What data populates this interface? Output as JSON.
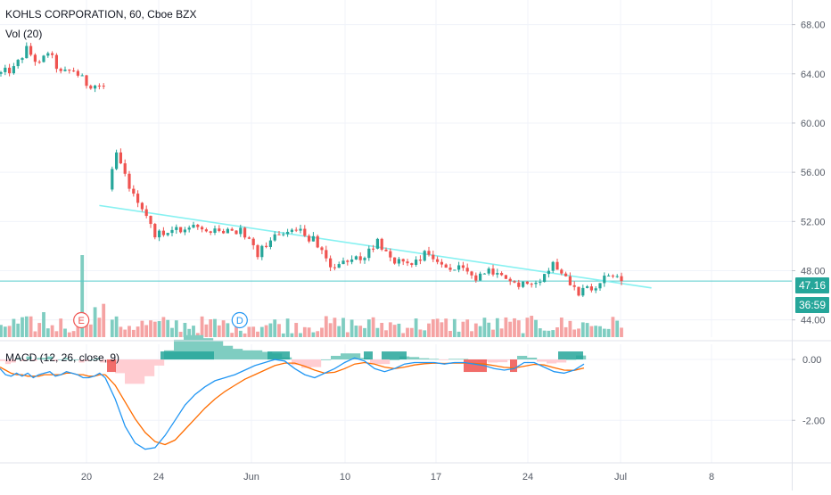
{
  "header": {
    "title": "KOHLS CORPORATION, 60, Cboe BZX",
    "volume_label": "Vol (20)",
    "macd_label": "MACD (12, 26, close, 9)"
  },
  "price_tag": {
    "value": "47.16",
    "countdown": "36:59",
    "color": "#26a69a"
  },
  "colors": {
    "up": "#26a69a",
    "down": "#ef5350",
    "vol_up": "#7fcdc1",
    "vol_down": "#f5a3a3",
    "macd_line": "#2196f3",
    "signal_line": "#ff6d00",
    "trendline": "#87f1f1",
    "level_line": "#56cccc"
  },
  "chart_data": [
    {
      "type": "candlestick",
      "title": "KOHLS CORPORATION, 60, Cboe BZX",
      "x_ticks": [
        "20",
        "24",
        "Jun",
        "10",
        "17",
        "24",
        "Jul",
        "8"
      ],
      "y_ticks": [
        "44.00",
        "48.00",
        "52.00",
        "56.00",
        "60.00",
        "64.00",
        "68.00"
      ],
      "ylim": [
        42.6,
        70
      ],
      "grid": true,
      "segments": [
        {
          "bars": 19,
          "start": 64.0,
          "path": [
            [
              0,
              63.9
            ],
            [
              4,
              64.4
            ],
            [
              7,
              66.0
            ],
            [
              10,
              64.7
            ],
            [
              12,
              65.8
            ],
            [
              15,
              64.0
            ],
            [
              18,
              64.3
            ],
            [
              21,
              63.2
            ],
            [
              25,
              63.0
            ]
          ]
        },
        {
          "bars": 88,
          "start": 54.6,
          "path": [
            [
              0,
              55.6
            ],
            [
              2,
              57.6
            ],
            [
              5,
              55.0
            ],
            [
              8,
              53.0
            ],
            [
              11,
              51.0
            ],
            [
              16,
              51.2
            ],
            [
              21,
              51.5
            ],
            [
              26,
              51.0
            ],
            [
              31,
              51.3
            ],
            [
              35,
              49.3
            ],
            [
              40,
              51.2
            ],
            [
              44,
              51.3
            ],
            [
              48,
              50.5
            ],
            [
              52,
              48.3
            ],
            [
              56,
              48.6
            ],
            [
              60,
              49.2
            ],
            [
              63,
              50.4
            ],
            [
              67,
              48.8
            ],
            [
              71,
              48.6
            ],
            [
              74,
              49.4
            ],
            [
              78,
              48.5
            ],
            [
              82,
              48.1
            ],
            [
              86,
              47.3
            ],
            [
              90,
              48.0
            ],
            [
              94,
              46.9
            ],
            [
              97,
              47.0
            ],
            [
              101,
              47.4
            ],
            [
              104,
              48.6
            ],
            [
              107,
              47.6
            ],
            [
              110,
              46.2
            ],
            [
              114,
              46.6
            ],
            [
              117,
              47.7
            ],
            [
              120,
              47.16
            ]
          ]
        }
      ],
      "trendline": {
        "from": [
          23,
          53.3
        ],
        "to": [
          152,
          46.6
        ]
      },
      "horizontal_level": 47.16
    },
    {
      "type": "bar",
      "title": "Vol (20)",
      "spike_index": 19,
      "ratings_markers": [
        {
          "label": "E",
          "after_bar": 19
        },
        {
          "label": "D",
          "after_bar": 56
        }
      ]
    },
    {
      "type": "line",
      "title": "MACD (12, 26, close, 9)",
      "y_ticks": [
        "0.00",
        "-2.00"
      ],
      "ylim": [
        -3.4,
        0.5
      ],
      "series": [
        {
          "values": [
            -0.3,
            -0.5,
            -0.55,
            -0.45,
            -0.55,
            -0.45,
            -0.6,
            -0.5,
            -0.45,
            -0.4,
            -0.55,
            -0.5,
            -0.4,
            -0.45,
            -0.5,
            -0.6,
            -0.6,
            -0.55,
            -0.45,
            -0.6
          ]
        },
        {
          "values": [
            -0.25,
            -0.35,
            -0.45,
            -0.5,
            -0.5,
            -0.55,
            -0.55,
            -0.55,
            -0.5,
            -0.5,
            -0.5,
            -0.5,
            -0.45,
            -0.45,
            -0.5,
            -0.5,
            -0.55,
            -0.55,
            -0.5,
            -0.5
          ]
        },
        {
          "values": [
            -0.6,
            -1.3,
            -2.2,
            -2.75,
            -2.95,
            -2.9,
            -2.5,
            -2.0,
            -1.5,
            -1.15,
            -0.9,
            -0.7,
            -0.6,
            -0.5,
            -0.35,
            -0.2,
            -0.1,
            0.0,
            -0.05,
            -0.3,
            -0.5,
            -0.6,
            -0.45,
            -0.3,
            -0.1,
            0.05,
            -0.05,
            -0.3,
            -0.4,
            -0.3,
            -0.15,
            -0.1,
            -0.1,
            -0.1,
            -0.15,
            -0.1,
            -0.1,
            -0.15,
            -0.2,
            -0.3,
            -0.35,
            -0.3,
            -0.1,
            -0.1,
            -0.25,
            -0.4,
            -0.45,
            -0.35,
            -0.15
          ]
        },
        {
          "values": [
            -0.5,
            -0.85,
            -1.4,
            -1.95,
            -2.4,
            -2.7,
            -2.8,
            -2.65,
            -2.3,
            -1.95,
            -1.6,
            -1.3,
            -1.05,
            -0.85,
            -0.65,
            -0.5,
            -0.35,
            -0.2,
            -0.12,
            -0.12,
            -0.22,
            -0.35,
            -0.45,
            -0.42,
            -0.3,
            -0.15,
            -0.1,
            -0.15,
            -0.25,
            -0.3,
            -0.25,
            -0.18,
            -0.14,
            -0.12,
            -0.13,
            -0.12,
            -0.12,
            -0.13,
            -0.15,
            -0.2,
            -0.26,
            -0.28,
            -0.22,
            -0.16,
            -0.18,
            -0.27,
            -0.35,
            -0.36,
            -0.28
          ]
        }
      ]
    }
  ]
}
